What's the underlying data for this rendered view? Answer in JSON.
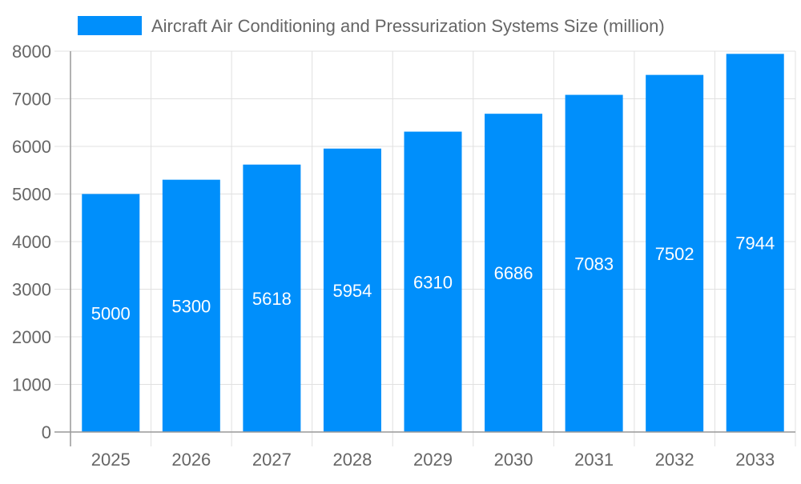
{
  "chart_data": {
    "type": "bar",
    "categories": [
      "2025",
      "2026",
      "2027",
      "2028",
      "2029",
      "2030",
      "2031",
      "2032",
      "2033"
    ],
    "series": [
      {
        "name": "Aircraft Air Conditioning and Pressurization Systems Size (million)",
        "values": [
          5000,
          5300,
          5618,
          5954,
          6310,
          6686,
          7083,
          7502,
          7944
        ]
      }
    ],
    "ylim": [
      0,
      8000
    ],
    "yticks": [
      0,
      1000,
      2000,
      3000,
      4000,
      5000,
      6000,
      7000,
      8000
    ],
    "grid": true,
    "legend": "top",
    "data_labels": true,
    "colors": {
      "bar": "#008ffb",
      "text": "#666666",
      "grid": "#e0e0e0",
      "label": "#ffffff"
    }
  }
}
